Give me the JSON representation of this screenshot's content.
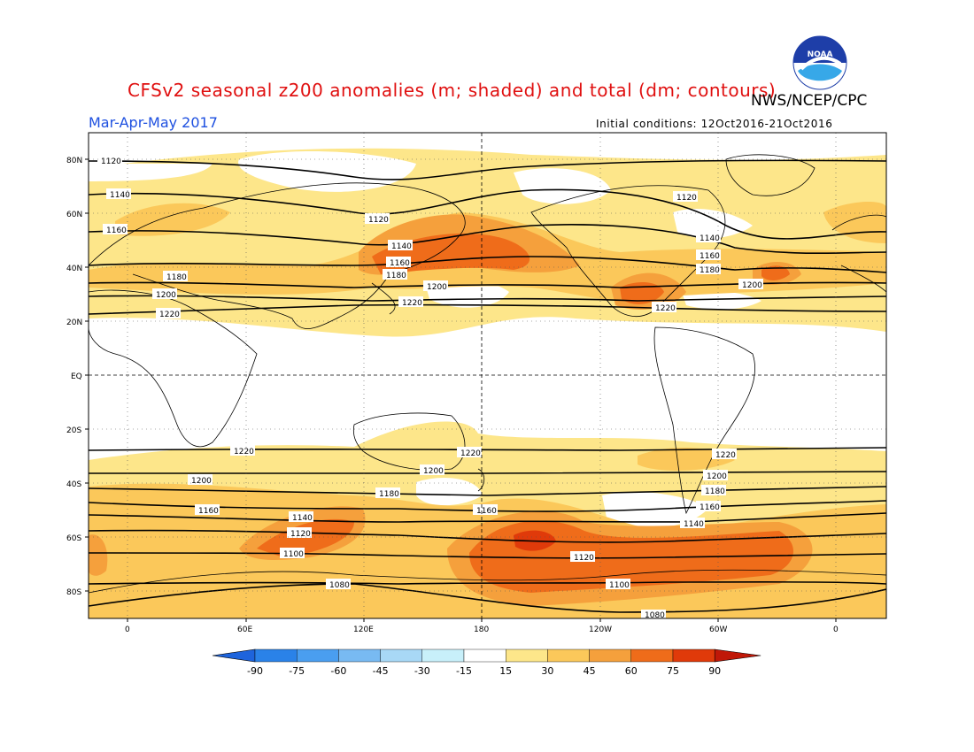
{
  "title": "CFSv2 seasonal z200 anomalies (m; shaded) and total (dm; contours)",
  "agency": "NWS/NCEP/CPC",
  "logo_text": "NOAA",
  "season": "Mar-Apr-May 2017",
  "initial_conditions": "Initial conditions: 12Oct2016-21Oct2016",
  "lat_labels": [
    "80N",
    "60N",
    "40N",
    "20N",
    "EQ",
    "20S",
    "40S",
    "60S",
    "80S"
  ],
  "lon_labels": [
    "0",
    "60E",
    "120E",
    "180",
    "120W",
    "60W",
    "0"
  ],
  "colorbar": {
    "labels": [
      "-90",
      "-75",
      "-60",
      "-45",
      "-30",
      "-15",
      "15",
      "30",
      "45",
      "60",
      "75",
      "90"
    ],
    "colors": [
      "#1e64dc",
      "#2a82e8",
      "#4a9ef0",
      "#78baf2",
      "#a8d8f6",
      "#c8f0fa",
      "#ffffff",
      "#fde68a",
      "#fbc85a",
      "#f5a03c",
      "#ef6c1a",
      "#e03a0a",
      "#c01808"
    ]
  },
  "contour_levels": [
    "1080",
    "1100",
    "1120",
    "1140",
    "1160",
    "1180",
    "1200",
    "1220"
  ]
}
